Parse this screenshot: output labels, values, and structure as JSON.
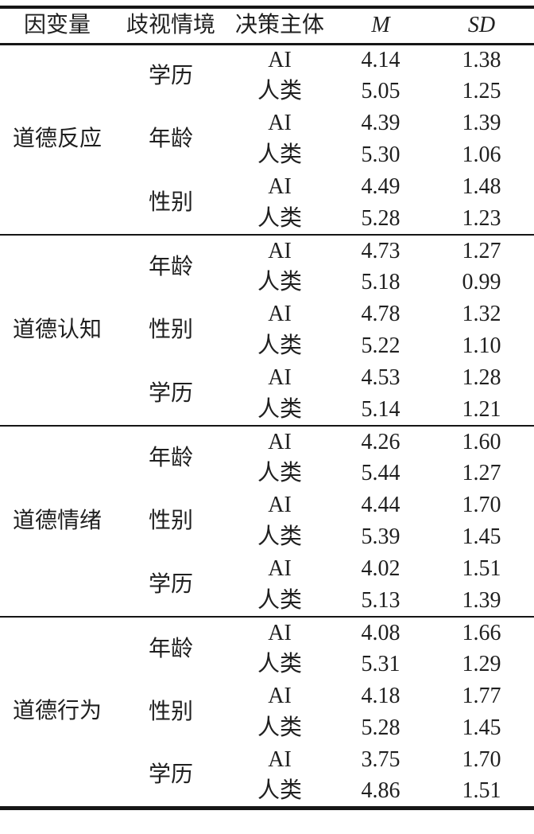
{
  "page": {
    "background_color": "#ffffff",
    "text_color": "#1f1f1f",
    "rule_color": "#161616"
  },
  "table": {
    "headers": {
      "variable": "因变量",
      "context": "歧视情境",
      "agent": "决策主体",
      "mean": "M",
      "sd": "SD"
    },
    "groups": [
      {
        "variable": "道德反应",
        "contexts": [
          {
            "context": "学历",
            "rows": [
              {
                "agent": "AI",
                "m": "4.14",
                "sd": "1.38"
              },
              {
                "agent": "人类",
                "m": "5.05",
                "sd": "1.25"
              }
            ]
          },
          {
            "context": "年龄",
            "rows": [
              {
                "agent": "AI",
                "m": "4.39",
                "sd": "1.39"
              },
              {
                "agent": "人类",
                "m": "5.30",
                "sd": "1.06"
              }
            ]
          },
          {
            "context": "性别",
            "rows": [
              {
                "agent": "AI",
                "m": "4.49",
                "sd": "1.48"
              },
              {
                "agent": "人类",
                "m": "5.28",
                "sd": "1.23"
              }
            ]
          }
        ]
      },
      {
        "variable": "道德认知",
        "contexts": [
          {
            "context": "年龄",
            "rows": [
              {
                "agent": "AI",
                "m": "4.73",
                "sd": "1.27"
              },
              {
                "agent": "人类",
                "m": "5.18",
                "sd": "0.99"
              }
            ]
          },
          {
            "context": "性别",
            "rows": [
              {
                "agent": "AI",
                "m": "4.78",
                "sd": "1.32"
              },
              {
                "agent": "人类",
                "m": "5.22",
                "sd": "1.10"
              }
            ]
          },
          {
            "context": "学历",
            "rows": [
              {
                "agent": "AI",
                "m": "4.53",
                "sd": "1.28"
              },
              {
                "agent": "人类",
                "m": "5.14",
                "sd": "1.21"
              }
            ]
          }
        ]
      },
      {
        "variable": "道德情绪",
        "contexts": [
          {
            "context": "年龄",
            "rows": [
              {
                "agent": "AI",
                "m": "4.26",
                "sd": "1.60"
              },
              {
                "agent": "人类",
                "m": "5.44",
                "sd": "1.27"
              }
            ]
          },
          {
            "context": "性别",
            "rows": [
              {
                "agent": "AI",
                "m": "4.44",
                "sd": "1.70"
              },
              {
                "agent": "人类",
                "m": "5.39",
                "sd": "1.45"
              }
            ]
          },
          {
            "context": "学历",
            "rows": [
              {
                "agent": "AI",
                "m": "4.02",
                "sd": "1.51"
              },
              {
                "agent": "人类",
                "m": "5.13",
                "sd": "1.39"
              }
            ]
          }
        ]
      },
      {
        "variable": "道德行为",
        "contexts": [
          {
            "context": "年龄",
            "rows": [
              {
                "agent": "AI",
                "m": "4.08",
                "sd": "1.66"
              },
              {
                "agent": "人类",
                "m": "5.31",
                "sd": "1.29"
              }
            ]
          },
          {
            "context": "性别",
            "rows": [
              {
                "agent": "AI",
                "m": "4.18",
                "sd": "1.77"
              },
              {
                "agent": "人类",
                "m": "5.28",
                "sd": "1.45"
              }
            ]
          },
          {
            "context": "学历",
            "rows": [
              {
                "agent": "AI",
                "m": "3.75",
                "sd": "1.70"
              },
              {
                "agent": "人类",
                "m": "4.86",
                "sd": "1.51"
              }
            ]
          }
        ]
      }
    ]
  }
}
